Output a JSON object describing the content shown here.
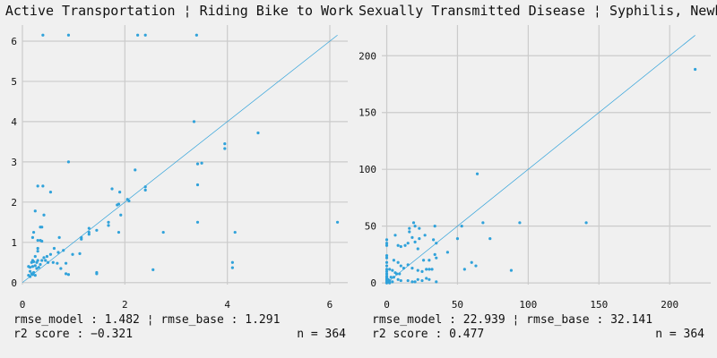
{
  "colors": {
    "background": "#f0f0f0",
    "grid": "#cbcbcb",
    "point": "#30a2da",
    "fit_line": "#30a2da"
  },
  "chart_data": [
    {
      "type": "scatter",
      "title": "Active Transportation ¦ Riding Bike to Work",
      "xlim": [
        0,
        6.35
      ],
      "ylim": [
        -0.05,
        6.4
      ],
      "xticks": [
        0,
        2,
        4,
        6
      ],
      "yticks": [
        0,
        1,
        2,
        3,
        4,
        5,
        6
      ],
      "grid": true,
      "reference_line": [
        [
          0,
          0
        ],
        [
          6.15,
          6.15
        ]
      ],
      "stats": {
        "line1": "rmse_model : 1.482 ¦ rmse_base : 1.291",
        "line2": "r2 score : −0.321",
        "n": "n = 364"
      },
      "points": [
        [
          0.4,
          6.15
        ],
        [
          0.9,
          6.15
        ],
        [
          2.25,
          6.15
        ],
        [
          2.4,
          6.15
        ],
        [
          3.4,
          6.15
        ],
        [
          6.15,
          1.5
        ],
        [
          4.6,
          3.72
        ],
        [
          3.35,
          4.0
        ],
        [
          3.95,
          3.45
        ],
        [
          3.95,
          3.33
        ],
        [
          3.5,
          2.97
        ],
        [
          3.42,
          2.95
        ],
        [
          3.42,
          2.43
        ],
        [
          3.42,
          1.5
        ],
        [
          4.15,
          1.25
        ],
        [
          4.1,
          0.5
        ],
        [
          4.1,
          0.37
        ],
        [
          2.75,
          1.25
        ],
        [
          2.55,
          0.32
        ],
        [
          2.2,
          2.8
        ],
        [
          2.4,
          2.38
        ],
        [
          2.4,
          2.3
        ],
        [
          2.05,
          2.07
        ],
        [
          2.08,
          2.03
        ],
        [
          1.9,
          2.25
        ],
        [
          1.85,
          1.93
        ],
        [
          1.88,
          1.95
        ],
        [
          1.75,
          2.33
        ],
        [
          1.92,
          1.68
        ],
        [
          1.88,
          1.25
        ],
        [
          1.68,
          1.5
        ],
        [
          1.68,
          1.42
        ],
        [
          1.3,
          1.35
        ],
        [
          1.3,
          1.25
        ],
        [
          1.3,
          1.2
        ],
        [
          1.15,
          1.12
        ],
        [
          1.15,
          1.08
        ],
        [
          1.45,
          1.3
        ],
        [
          1.45,
          0.25
        ],
        [
          1.45,
          0.22
        ],
        [
          1.12,
          0.72
        ],
        [
          0.98,
          0.7
        ],
        [
          0.9,
          3.0
        ],
        [
          0.55,
          2.25
        ],
        [
          0.4,
          2.4
        ],
        [
          0.3,
          2.4
        ],
        [
          0.25,
          1.78
        ],
        [
          0.42,
          1.68
        ],
        [
          0.35,
          1.38
        ],
        [
          0.38,
          1.38
        ],
        [
          0.22,
          1.25
        ],
        [
          0.2,
          1.12
        ],
        [
          0.3,
          1.05
        ],
        [
          0.35,
          1.05
        ],
        [
          0.38,
          1.03
        ],
        [
          0.72,
          1.12
        ],
        [
          0.3,
          0.85
        ],
        [
          0.3,
          0.78
        ],
        [
          0.62,
          0.85
        ],
        [
          0.7,
          0.75
        ],
        [
          0.55,
          0.7
        ],
        [
          0.25,
          0.65
        ],
        [
          0.48,
          0.65
        ],
        [
          0.42,
          0.62
        ],
        [
          0.2,
          0.55
        ],
        [
          0.3,
          0.55
        ],
        [
          0.18,
          0.5
        ],
        [
          0.22,
          0.52
        ],
        [
          0.28,
          0.5
        ],
        [
          0.38,
          0.55
        ],
        [
          0.45,
          0.55
        ],
        [
          0.5,
          0.5
        ],
        [
          0.6,
          0.5
        ],
        [
          0.68,
          0.48
        ],
        [
          0.85,
          0.48
        ],
        [
          0.8,
          0.8
        ],
        [
          0.12,
          0.4
        ],
        [
          0.15,
          0.38
        ],
        [
          0.2,
          0.4
        ],
        [
          0.25,
          0.42
        ],
        [
          0.32,
          0.38
        ],
        [
          0.75,
          0.35
        ],
        [
          0.15,
          0.28
        ],
        [
          0.18,
          0.22
        ],
        [
          0.22,
          0.25
        ],
        [
          0.12,
          0.18
        ],
        [
          0.15,
          0.15
        ],
        [
          0.2,
          0.2
        ],
        [
          0.25,
          0.18
        ],
        [
          0.85,
          0.22
        ],
        [
          0.9,
          0.2
        ],
        [
          0.28,
          0.35
        ],
        [
          0.35,
          0.45
        ]
      ]
    },
    {
      "type": "scatter",
      "title": "Sexually Transmitted Disease ¦ Syphilis, Newborn",
      "xlim": [
        -3.5,
        229
      ],
      "ylim": [
        -1.5,
        227
      ],
      "xticks": [
        0,
        50,
        100,
        150,
        200
      ],
      "yticks": [
        0,
        50,
        100,
        150,
        200
      ],
      "grid": true,
      "reference_line": [
        [
          0,
          0
        ],
        [
          218,
          218
        ]
      ],
      "stats": {
        "line1": "rmse_model : 22.939 ¦ rmse_base : 32.141",
        "line2": "r2 score : 0.477",
        "n": "n = 364"
      },
      "points": [
        [
          218,
          188
        ],
        [
          64,
          96
        ],
        [
          141,
          53
        ],
        [
          94,
          53
        ],
        [
          68,
          53
        ],
        [
          73,
          39
        ],
        [
          50,
          39
        ],
        [
          53,
          50
        ],
        [
          34,
          50
        ],
        [
          19,
          53
        ],
        [
          20,
          50
        ],
        [
          23,
          48
        ],
        [
          16,
          48
        ],
        [
          33,
          38
        ],
        [
          35,
          35
        ],
        [
          27,
          42
        ],
        [
          18,
          40
        ],
        [
          20,
          36
        ],
        [
          23,
          39
        ],
        [
          43,
          27
        ],
        [
          34,
          25
        ],
        [
          35,
          22
        ],
        [
          30,
          20
        ],
        [
          26,
          20
        ],
        [
          55,
          12
        ],
        [
          63,
          15
        ],
        [
          60,
          18
        ],
        [
          88,
          11
        ],
        [
          0,
          38
        ],
        [
          0,
          35
        ],
        [
          0,
          33
        ],
        [
          0,
          24
        ],
        [
          0,
          22
        ],
        [
          6,
          42
        ],
        [
          8,
          33
        ],
        [
          10,
          32
        ],
        [
          15,
          35
        ],
        [
          13,
          33
        ],
        [
          5,
          20
        ],
        [
          8,
          18
        ],
        [
          10,
          15
        ],
        [
          12,
          13
        ],
        [
          15,
          16
        ],
        [
          18,
          13
        ],
        [
          22,
          11
        ],
        [
          25,
          10
        ],
        [
          28,
          12
        ],
        [
          30,
          12
        ],
        [
          32,
          12
        ],
        [
          2,
          12
        ],
        [
          4,
          11
        ],
        [
          6,
          9
        ],
        [
          7,
          8
        ],
        [
          9,
          8
        ],
        [
          3,
          5
        ],
        [
          5,
          5
        ],
        [
          8,
          3
        ],
        [
          10,
          2
        ],
        [
          15,
          2
        ],
        [
          18,
          1
        ],
        [
          22,
          3
        ],
        [
          25,
          2
        ],
        [
          28,
          4
        ],
        [
          30,
          3
        ],
        [
          35,
          1
        ],
        [
          20,
          1
        ],
        [
          0,
          18
        ],
        [
          0,
          15
        ],
        [
          0,
          12
        ],
        [
          0,
          10
        ],
        [
          0,
          8
        ],
        [
          0,
          6
        ],
        [
          0,
          5
        ],
        [
          0,
          4
        ],
        [
          0,
          3
        ],
        [
          0,
          2
        ],
        [
          0,
          1
        ],
        [
          0,
          0
        ],
        [
          1,
          1
        ],
        [
          2,
          2
        ],
        [
          1,
          3
        ],
        [
          2,
          0
        ],
        [
          4,
          1
        ],
        [
          16,
          45
        ],
        [
          22,
          30
        ]
      ]
    }
  ]
}
